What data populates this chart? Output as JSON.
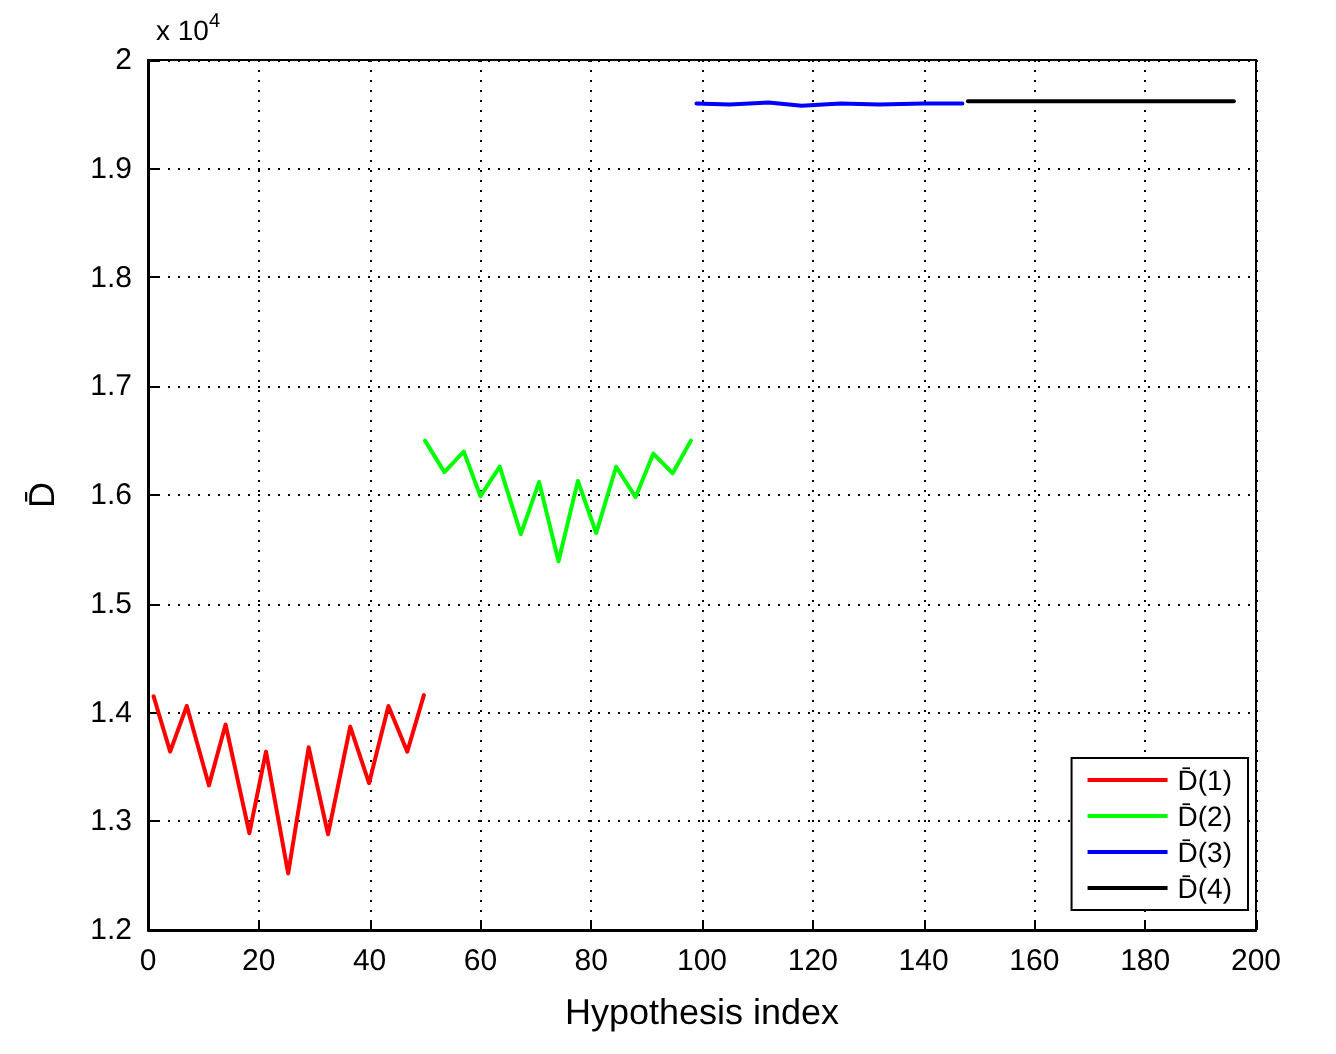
{
  "chart_data": {
    "type": "line",
    "xlabel": "Hypothesis index",
    "ylabel": "D̄",
    "annotations": [
      "x 10$^{4}$"
    ],
    "xlim": [
      0,
      200
    ],
    "xticks": [
      0,
      20,
      40,
      60,
      80,
      100,
      120,
      140,
      160,
      180,
      200
    ],
    "ylim": [
      1.2,
      2
    ],
    "yticks": [
      1.2,
      1.3,
      1.4,
      1.5,
      1.6,
      1.7,
      1.8,
      1.9,
      2
    ],
    "grid": true,
    "legend": "bottom right",
    "marker": "none",
    "line_style": "solid",
    "series": [
      {
        "name": "D̄(1)",
        "color": "#ff0000",
        "x": [
          1,
          4,
          7,
          11,
          14,
          18.3,
          21.3,
          25.3,
          29,
          32.5,
          36.5,
          39.9,
          43.4,
          46.8,
          49.8
        ],
        "values": [
          1.415,
          1.364,
          1.406,
          1.333,
          1.389,
          1.289,
          1.364,
          1.252,
          1.368,
          1.288,
          1.387,
          1.335,
          1.406,
          1.364,
          1.416
        ]
      },
      {
        "name": "D̄(2)",
        "color": "#00ff00",
        "x": [
          50,
          53.5,
          57,
          60,
          63.5,
          67.3,
          70.6,
          74.1,
          77.6,
          80.9,
          84.5,
          88,
          91.2,
          94.7,
          98
        ],
        "values": [
          1.65,
          1.621,
          1.64,
          1.599,
          1.626,
          1.564,
          1.612,
          1.539,
          1.613,
          1.565,
          1.626,
          1.598,
          1.638,
          1.62,
          1.65
        ]
      },
      {
        "name": "D̄(3)",
        "color": "#0000ff",
        "x": [
          99,
          105,
          112,
          118,
          125,
          132,
          140,
          147
        ],
        "values": [
          1.96,
          1.959,
          1.961,
          1.958,
          1.96,
          1.959,
          1.96,
          1.96
        ]
      },
      {
        "name": "D̄(4)",
        "color": "#000000",
        "x": [
          148,
          196
        ],
        "values": [
          1.962,
          1.962
        ]
      }
    ]
  }
}
